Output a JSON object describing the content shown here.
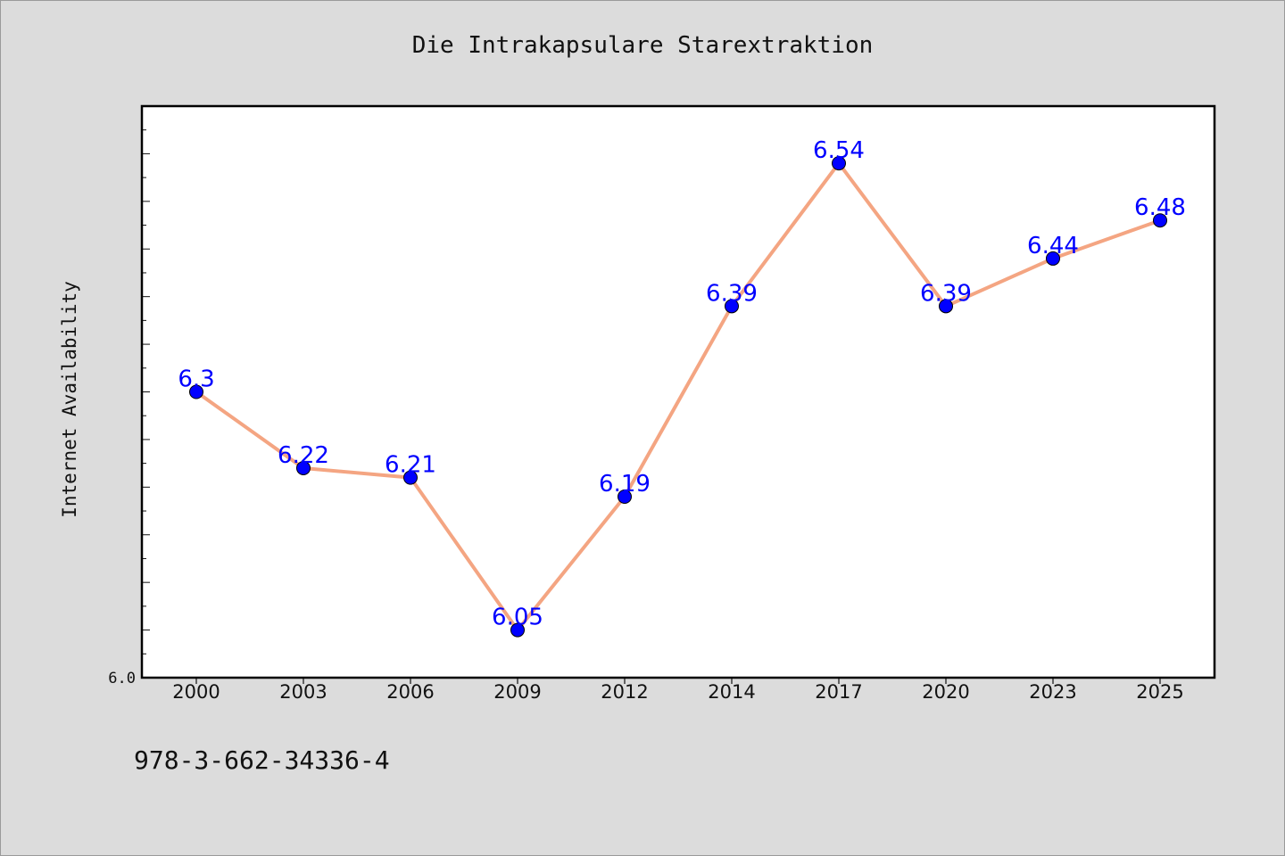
{
  "title": "Die Intrakapsulare Starextraktion",
  "footer": "978-3-662-34336-4",
  "colors": {
    "background": "#dcdcdc",
    "plot_background": "#ffffff",
    "line": "#f4a582",
    "marker": "#0000ff",
    "label": "#0000ff"
  },
  "chart_data": {
    "type": "line",
    "title": "Die Intrakapsulare Starextraktion",
    "xlabel": "",
    "ylabel": "Internet Availability",
    "categories": [
      "2000",
      "2003",
      "2006",
      "2009",
      "2012",
      "2014",
      "2017",
      "2020",
      "2023",
      "2025"
    ],
    "values": [
      6.3,
      6.22,
      6.21,
      6.05,
      6.19,
      6.39,
      6.54,
      6.39,
      6.44,
      6.48
    ],
    "data_labels": [
      "6.3",
      "6.22",
      "6.21",
      "6.05",
      "6.19",
      "6.39",
      "6.54",
      "6.39",
      "6.44",
      "6.48"
    ],
    "ylim": [
      6.0,
      6.6
    ],
    "y_tick_labels": [
      "6.0"
    ],
    "grid": false,
    "legend": "none"
  }
}
